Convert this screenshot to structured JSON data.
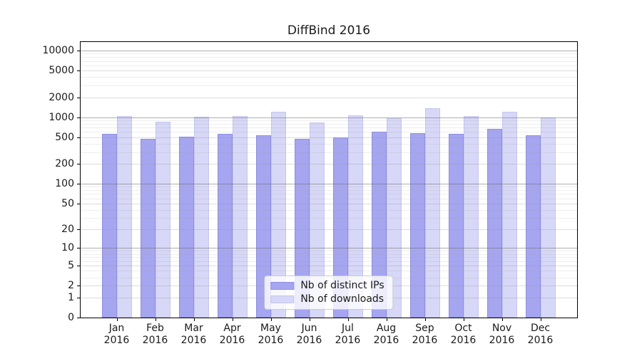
{
  "chart_data": {
    "type": "bar",
    "title": "DiffBind 2016",
    "categories": [
      "Jan 2016",
      "Feb 2016",
      "Mar 2016",
      "Apr 2016",
      "May 2016",
      "Jun 2016",
      "Jul 2016",
      "Aug 2016",
      "Sep 2016",
      "Oct 2016",
      "Nov 2016",
      "Dec 2016"
    ],
    "series": [
      {
        "name": "Nb of distinct IPs",
        "color": "#a5a5f0",
        "edge_color": "#8f8fe0",
        "values": [
          560,
          480,
          510,
          565,
          540,
          480,
          500,
          600,
          580,
          570,
          665,
          540
        ]
      },
      {
        "name": "Nb of downloads",
        "color": "#d7d7f7",
        "edge_color": "#c6c6ee",
        "values": [
          1050,
          865,
          1020,
          1035,
          1220,
          830,
          1070,
          970,
          1370,
          1055,
          1200,
          1000
        ]
      }
    ],
    "yscale": "log1p",
    "yticks": [
      0,
      1,
      2,
      5,
      10,
      20,
      50,
      100,
      200,
      500,
      1000,
      2000,
      5000,
      10000
    ],
    "ylim": [
      0,
      10000
    ],
    "xlabel": "",
    "ylabel": "",
    "grid": true,
    "legend_position": "lower center",
    "colors": {
      "grid_major": "#b0b0b0",
      "grid_mid": "#d9d9d9",
      "grid_minor": "#ececec",
      "axis": "#000000",
      "text": "#1a1a1a",
      "background": "#ffffff"
    }
  }
}
